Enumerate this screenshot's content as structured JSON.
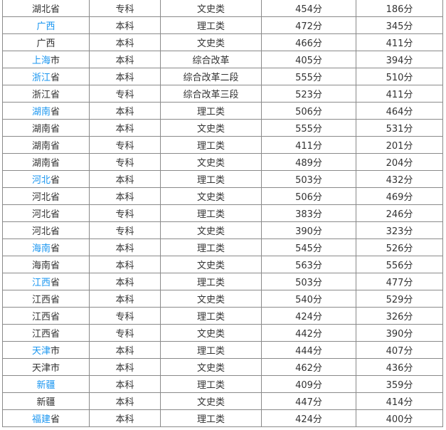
{
  "colors": {
    "link": "#1a96f0",
    "text": "#333333"
  },
  "rows": [
    {
      "region_link": "",
      "region_rest": "湖北省",
      "level": "专科",
      "type": "文史类",
      "score1": "454分",
      "score2": "186分"
    },
    {
      "region_link": "广西",
      "region_rest": "",
      "level": "本科",
      "type": "理工类",
      "score1": "472分",
      "score2": "345分"
    },
    {
      "region_link": "",
      "region_rest": "广西",
      "level": "本科",
      "type": "文史类",
      "score1": "466分",
      "score2": "411分"
    },
    {
      "region_link": "上海",
      "region_rest": "市",
      "level": "本科",
      "type": "综合改革",
      "score1": "405分",
      "score2": "394分"
    },
    {
      "region_link": "浙江",
      "region_rest": "省",
      "level": "本科",
      "type": "综合改革二段",
      "score1": "555分",
      "score2": "510分"
    },
    {
      "region_link": "",
      "region_rest": "浙江省",
      "level": "专科",
      "type": "综合改革三段",
      "score1": "523分",
      "score2": "411分"
    },
    {
      "region_link": "湖南",
      "region_rest": "省",
      "level": "本科",
      "type": "理工类",
      "score1": "506分",
      "score2": "464分"
    },
    {
      "region_link": "",
      "region_rest": "湖南省",
      "level": "本科",
      "type": "文史类",
      "score1": "555分",
      "score2": "531分"
    },
    {
      "region_link": "",
      "region_rest": "湖南省",
      "level": "专科",
      "type": "理工类",
      "score1": "411分",
      "score2": "201分"
    },
    {
      "region_link": "",
      "region_rest": "湖南省",
      "level": "专科",
      "type": "文史类",
      "score1": "489分",
      "score2": "204分"
    },
    {
      "region_link": "河北",
      "region_rest": "省",
      "level": "本科",
      "type": "理工类",
      "score1": "503分",
      "score2": "432分"
    },
    {
      "region_link": "",
      "region_rest": "河北省",
      "level": "本科",
      "type": "文史类",
      "score1": "506分",
      "score2": "469分"
    },
    {
      "region_link": "",
      "region_rest": "河北省",
      "level": "专科",
      "type": "理工类",
      "score1": "383分",
      "score2": "246分"
    },
    {
      "region_link": "",
      "region_rest": "河北省",
      "level": "专科",
      "type": "文史类",
      "score1": "390分",
      "score2": "323分"
    },
    {
      "region_link": "海南",
      "region_rest": "省",
      "level": "本科",
      "type": "理工类",
      "score1": "545分",
      "score2": "526分"
    },
    {
      "region_link": "",
      "region_rest": "海南省",
      "level": "本科",
      "type": "文史类",
      "score1": "563分",
      "score2": "556分"
    },
    {
      "region_link": "江西",
      "region_rest": "省",
      "level": "本科",
      "type": "理工类",
      "score1": "503分",
      "score2": "477分"
    },
    {
      "region_link": "",
      "region_rest": "江西省",
      "level": "本科",
      "type": "文史类",
      "score1": "540分",
      "score2": "529分"
    },
    {
      "region_link": "",
      "region_rest": "江西省",
      "level": "专科",
      "type": "理工类",
      "score1": "424分",
      "score2": "326分"
    },
    {
      "region_link": "",
      "region_rest": "江西省",
      "level": "专科",
      "type": "文史类",
      "score1": "442分",
      "score2": "390分"
    },
    {
      "region_link": "天津",
      "region_rest": "市",
      "level": "本科",
      "type": "理工类",
      "score1": "444分",
      "score2": "407分"
    },
    {
      "region_link": "",
      "region_rest": "天津市",
      "level": "本科",
      "type": "文史类",
      "score1": "462分",
      "score2": "436分"
    },
    {
      "region_link": "新疆",
      "region_rest": "",
      "level": "本科",
      "type": "理工类",
      "score1": "409分",
      "score2": "359分"
    },
    {
      "region_link": "",
      "region_rest": "新疆",
      "level": "本科",
      "type": "文史类",
      "score1": "447分",
      "score2": "414分"
    },
    {
      "region_link": "福建",
      "region_rest": "省",
      "level": "本科",
      "type": "理工类",
      "score1": "424分",
      "score2": "400分"
    }
  ]
}
